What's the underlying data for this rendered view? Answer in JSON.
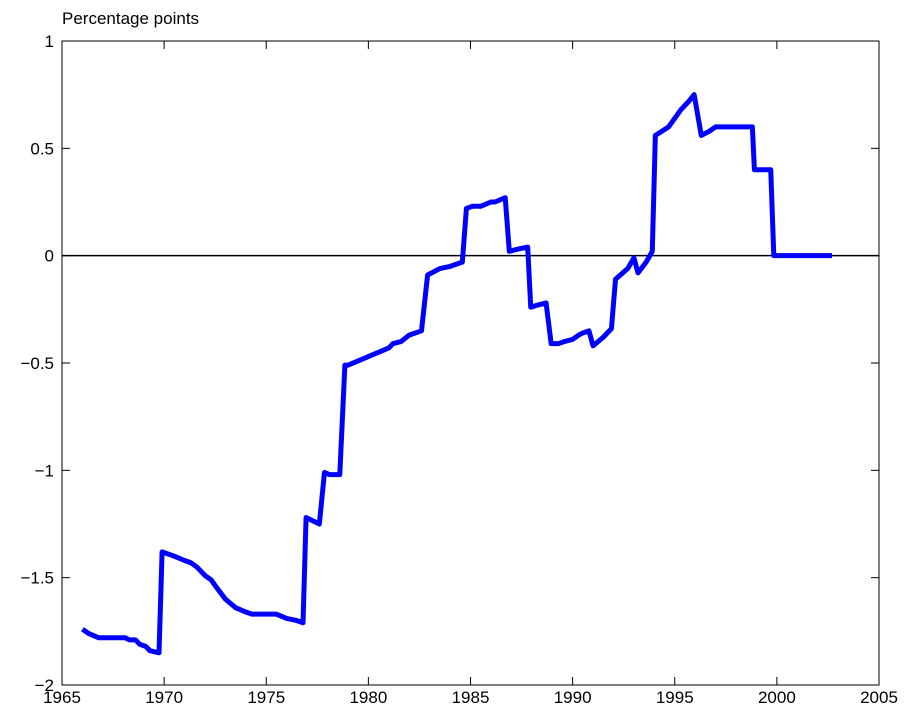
{
  "chart_data": {
    "type": "line",
    "title": "Percentage points",
    "x": [
      1966.0,
      1966.3,
      1966.8,
      1967.3,
      1967.8,
      1968.1,
      1968.3,
      1968.6,
      1968.8,
      1969.1,
      1969.3,
      1969.75,
      1969.9,
      1970.5,
      1971.0,
      1971.3,
      1971.6,
      1972.0,
      1972.3,
      1972.6,
      1973.0,
      1973.5,
      1974.0,
      1974.3,
      1975.0,
      1975.5,
      1976.0,
      1976.5,
      1976.8,
      1976.95,
      1977.6,
      1977.85,
      1978.1,
      1978.6,
      1978.85,
      1979.0,
      1980.0,
      1981.0,
      1981.2,
      1981.6,
      1982.0,
      1982.6,
      1982.9,
      1983.5,
      1984.0,
      1984.3,
      1984.6,
      1984.8,
      1985.1,
      1985.5,
      1986.0,
      1986.2,
      1986.7,
      1986.9,
      1987.3,
      1987.8,
      1987.95,
      1988.3,
      1988.7,
      1988.95,
      1989.3,
      1989.6,
      1990.0,
      1990.3,
      1990.5,
      1990.8,
      1991.0,
      1991.5,
      1991.9,
      1992.1,
      1992.7,
      1993.0,
      1993.2,
      1993.6,
      1993.9,
      1994.05,
      1994.7,
      1995.0,
      1995.3,
      1995.7,
      1995.95,
      1996.3,
      1996.7,
      1997.0,
      1998.0,
      1998.8,
      1998.9,
      1999.7,
      1999.85,
      2002.7
    ],
    "series": [
      {
        "color": "#0000ff",
        "values": [
          -1.74,
          -1.76,
          -1.78,
          -1.78,
          -1.78,
          -1.78,
          -1.79,
          -1.79,
          -1.81,
          -1.82,
          -1.84,
          -1.85,
          -1.38,
          -1.4,
          -1.42,
          -1.43,
          -1.45,
          -1.49,
          -1.51,
          -1.55,
          -1.6,
          -1.64,
          -1.66,
          -1.67,
          -1.67,
          -1.67,
          -1.69,
          -1.7,
          -1.71,
          -1.22,
          -1.25,
          -1.01,
          -1.02,
          -1.02,
          -0.51,
          -0.51,
          -0.47,
          -0.43,
          -0.41,
          -0.4,
          -0.37,
          -0.35,
          -0.09,
          -0.06,
          -0.05,
          -0.04,
          -0.03,
          0.22,
          0.23,
          0.23,
          0.25,
          0.25,
          0.27,
          0.02,
          0.03,
          0.04,
          -0.24,
          -0.23,
          -0.22,
          -0.41,
          -0.41,
          -0.4,
          -0.39,
          -0.37,
          -0.36,
          -0.35,
          -0.42,
          -0.38,
          -0.34,
          -0.11,
          -0.06,
          -0.01,
          -0.08,
          -0.03,
          0.02,
          0.56,
          0.6,
          0.64,
          0.68,
          0.72,
          0.75,
          0.56,
          0.58,
          0.6,
          0.6,
          0.6,
          0.4,
          0.4,
          0.0,
          0.0
        ]
      }
    ],
    "xlim": [
      1965,
      2005
    ],
    "xticks": [
      1965,
      1970,
      1975,
      1980,
      1985,
      1990,
      1995,
      2000,
      2005
    ],
    "ylim": [
      -2,
      1
    ],
    "yticks": [
      {
        "value": -2,
        "label": "−2"
      },
      {
        "value": -1.5,
        "label": "−1.5"
      },
      {
        "value": -1,
        "label": "−1"
      },
      {
        "value": -0.5,
        "label": "−0.5"
      },
      0,
      0.5,
      1
    ],
    "zero_line": true
  }
}
